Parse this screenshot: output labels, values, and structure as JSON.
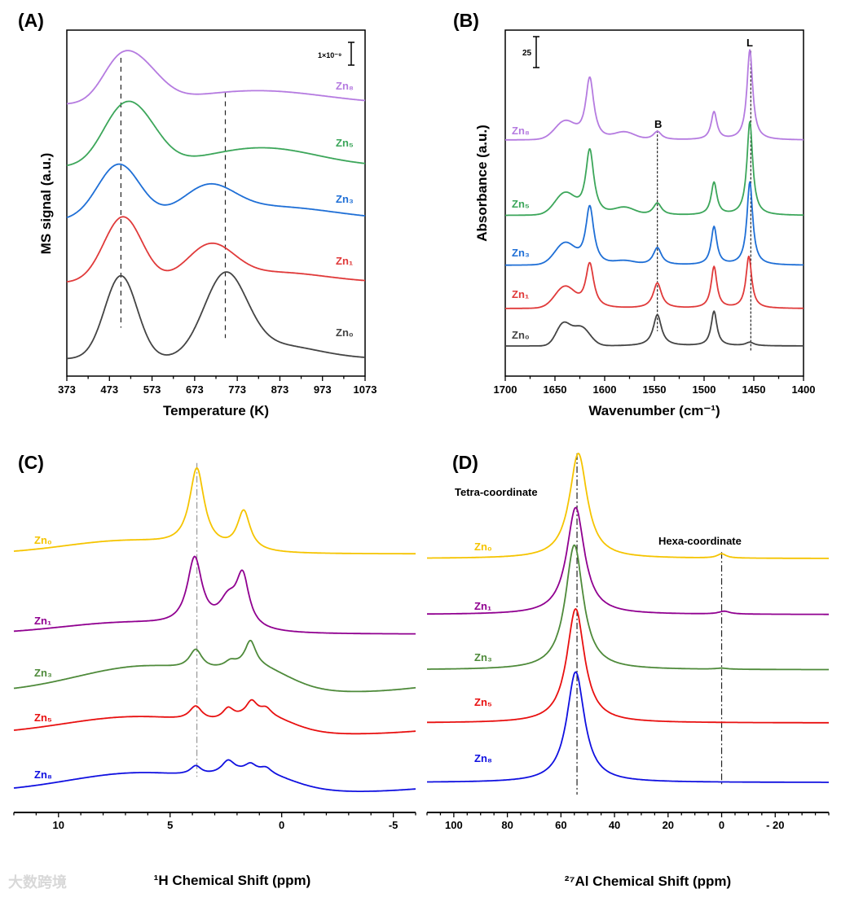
{
  "watermark": "大数跨境",
  "chart_data": [
    {
      "panel": "(A)",
      "type": "line",
      "xlabel": "Temperature (K)",
      "ylabel": "MS signal (a.u.)",
      "xlim": [
        373,
        1073
      ],
      "ylim": [
        0,
        100
      ],
      "xticks": [
        373,
        473,
        573,
        673,
        773,
        873,
        973,
        1073
      ],
      "xtick_labels": [
        "373",
        "473",
        "573",
        "673",
        "773",
        "873",
        "973",
        "1073"
      ],
      "minor_step": 50,
      "scale_bar": {
        "label": "1×10⁻⁹"
      },
      "reference_lines": [
        {
          "x": 500,
          "y_range": [
            14,
            92
          ]
        },
        {
          "x": 745,
          "y_range": [
            11,
            82
          ]
        }
      ],
      "series": [
        {
          "name": "Zn₈",
          "color": "#b57be0",
          "offset": 78.5,
          "peaks": [
            [
              490,
              8,
              40,
              "g"
            ],
            [
              545,
              10,
              50,
              "g"
            ],
            [
              820,
              4,
              160,
              "g"
            ]
          ]
        },
        {
          "name": "Zn₅",
          "color": "#3ca65a",
          "offset": 60.5,
          "peaks": [
            [
              490,
              10,
              45,
              "g"
            ],
            [
              545,
              12,
              50,
              "g"
            ],
            [
              830,
              5.5,
              130,
              "g"
            ]
          ]
        },
        {
          "name": "Zn₃",
          "color": "#1f6fd6",
          "offset": 45,
          "peaks": [
            [
              495,
              16,
              50,
              "g"
            ],
            [
              705,
              8,
              60,
              "g"
            ],
            [
              850,
              4,
              150,
              "g"
            ]
          ]
        },
        {
          "name": "Zn₁",
          "color": "#e03a3a",
          "offset": 27,
          "peaks": [
            [
              505,
              19,
              45,
              "g"
            ],
            [
              710,
              10,
              55,
              "g"
            ],
            [
              860,
              3,
              120,
              "g"
            ]
          ]
        },
        {
          "name": "Zn₀",
          "color": "#444444",
          "offset": 5,
          "peaks": [
            [
              500,
              24,
              38,
              "g"
            ],
            [
              745,
              23,
              50,
              "g"
            ],
            [
              860,
              4,
              100,
              "g"
            ]
          ]
        }
      ]
    },
    {
      "panel": "(B)",
      "type": "line",
      "xlabel": "Wavenumber (cm⁻¹)",
      "ylabel": "Absorbance (a.u.)",
      "xlim": [
        1700,
        1400
      ],
      "ylim": [
        0,
        100
      ],
      "xticks": [
        1700,
        1650,
        1600,
        1550,
        1500,
        1450,
        1400
      ],
      "xtick_labels": [
        "1700",
        "1650",
        "1600",
        "1550",
        "1500",
        "1450",
        "1400"
      ],
      "minor_step": 25,
      "scale_bar": {
        "label": "25"
      },
      "annotations": [
        "B",
        "L"
      ],
      "reference_lines": [
        {
          "x": 1547,
          "y_range": [
            13,
            71
          ]
        },
        {
          "x": 1453,
          "y_range": [
            7,
            94
          ]
        }
      ],
      "series": [
        {
          "name": "Zn₈",
          "color": "#b57be0",
          "offset": 68.2,
          "peaks": [
            [
              1640,
              5,
              10,
              "g"
            ],
            [
              1615,
              18,
              5,
              "l"
            ],
            [
              1580,
              2,
              10,
              "g"
            ],
            [
              1547,
              2.4,
              5,
              "l"
            ],
            [
              1490,
              8,
              3.5,
              "l"
            ],
            [
              1454,
              26,
              3.5,
              "l"
            ]
          ]
        },
        {
          "name": "Zn₅",
          "color": "#3ca65a",
          "offset": 46.4,
          "peaks": [
            [
              1640,
              6,
              10,
              "g"
            ],
            [
              1615,
              19,
              5,
              "l"
            ],
            [
              1580,
              2,
              10,
              "g"
            ],
            [
              1547,
              3.5,
              5,
              "l"
            ],
            [
              1490,
              9.4,
              3.5,
              "l"
            ],
            [
              1454,
              27,
              3.5,
              "l"
            ]
          ]
        },
        {
          "name": "Zn₃",
          "color": "#1f6fd6",
          "offset": 32,
          "peaks": [
            [
              1640,
              6,
              10,
              "g"
            ],
            [
              1615,
              17,
              5,
              "l"
            ],
            [
              1580,
              1,
              10,
              "g"
            ],
            [
              1547,
              5,
              5,
              "l"
            ],
            [
              1490,
              11,
              3.5,
              "l"
            ],
            [
              1454,
              24,
              3.5,
              "l"
            ]
          ]
        },
        {
          "name": "Zn₁",
          "color": "#e03a3a",
          "offset": 19.5,
          "peaks": [
            [
              1640,
              6,
              10,
              "g"
            ],
            [
              1615,
              13,
              5,
              "l"
            ],
            [
              1547,
              7.3,
              5,
              "l"
            ],
            [
              1490,
              12,
              3.5,
              "l"
            ],
            [
              1455,
              15,
              3.5,
              "l"
            ]
          ]
        },
        {
          "name": "Zn₀",
          "color": "#444444",
          "offset": 8.7,
          "peaks": [
            [
              1642,
              6,
              7,
              "g"
            ],
            [
              1624,
              5.5,
              9,
              "g"
            ],
            [
              1547,
              9,
              5,
              "l"
            ],
            [
              1490,
              10,
              3.5,
              "l"
            ],
            [
              1454,
              1,
              5,
              "l"
            ]
          ]
        }
      ]
    },
    {
      "panel": "(C)",
      "type": "line",
      "xlabel": "¹H Chemical Shift (ppm)",
      "xlim": [
        12,
        -6
      ],
      "ylim": [
        0,
        100
      ],
      "xticks": [
        10,
        5,
        0,
        -5
      ],
      "xtick_labels": [
        "10",
        "5",
        "0",
        "-5"
      ],
      "minor_step": 1,
      "reference_lines": [
        {
          "x": 3.8,
          "y_range": [
            10,
            98
          ]
        }
      ],
      "series": [
        {
          "name": "Zn₀",
          "color": "#f5c400",
          "offset": 72.5,
          "peaks": [
            [
              7,
              3.5,
              2.8,
              "g"
            ],
            [
              3.8,
              22,
              0.4,
              "l"
            ],
            [
              1.7,
              11,
              0.35,
              "l"
            ]
          ]
        },
        {
          "name": "Zn₁",
          "color": "#900090",
          "offset": 50,
          "peaks": [
            [
              7,
              3,
              3,
              "g"
            ],
            [
              3.9,
              19,
              0.4,
              "l"
            ],
            [
              2.4,
              7,
              0.5,
              "l"
            ],
            [
              1.75,
              14,
              0.35,
              "l"
            ]
          ]
        },
        {
          "name": "Zn₃",
          "color": "#4e8a3a",
          "offset": 33.5,
          "peaks": [
            [
              6,
              7.5,
              3.2,
              "g"
            ],
            [
              1,
              5,
              1.4,
              "g"
            ],
            [
              3.85,
              5.5,
              0.35,
              "l"
            ],
            [
              2.3,
              1.5,
              0.3,
              "l"
            ],
            [
              1.4,
              7,
              0.3,
              "l"
            ],
            [
              -9,
              3,
              2.5,
              "g"
            ]
          ]
        },
        {
          "name": "Zn₅",
          "color": "#e81010",
          "offset": 21.8,
          "peaks": [
            [
              6.5,
              5,
              3.3,
              "g"
            ],
            [
              0.8,
              4,
              1.3,
              "g"
            ],
            [
              3.85,
              4,
              0.35,
              "l"
            ],
            [
              2.4,
              3,
              0.3,
              "l"
            ],
            [
              1.35,
              4,
              0.3,
              "l"
            ],
            [
              0.7,
              2,
              0.3,
              "l"
            ],
            [
              -9,
              2,
              2.5,
              "g"
            ]
          ]
        },
        {
          "name": "Zn₈",
          "color": "#1010e0",
          "offset": 5.6,
          "peaks": [
            [
              6.3,
              5.5,
              3.3,
              "g"
            ],
            [
              1,
              4,
              1.5,
              "g"
            ],
            [
              3.85,
              2.5,
              0.3,
              "l"
            ],
            [
              2.4,
              3.5,
              0.35,
              "l"
            ],
            [
              1.4,
              2,
              0.3,
              "l"
            ],
            [
              0.7,
              1.5,
              0.3,
              "l"
            ],
            [
              -9,
              2,
              2.5,
              "g"
            ]
          ]
        }
      ]
    },
    {
      "panel": "(D)",
      "type": "line",
      "xlabel": "²⁷Al Chemical Shift (ppm)",
      "xlim": [
        110,
        -40
      ],
      "ylim": [
        0,
        100
      ],
      "xticks": [
        100,
        80,
        60,
        40,
        20,
        0,
        -20
      ],
      "xtick_labels": [
        "100",
        "80",
        "60",
        "40",
        "20",
        "0",
        "- 20"
      ],
      "minor_step": 5,
      "annotations": [
        "Tetra-coordinate",
        "Hexa-coordinate"
      ],
      "reference_lines": [
        {
          "x": 54,
          "y_range": [
            5,
            100.7
          ]
        },
        {
          "x": 0,
          "y_range": [
            7.5,
            73
          ]
        }
      ],
      "series": [
        {
          "name": "Zn₀",
          "color": "#f5c400",
          "offset": 71.2,
          "peaks": [
            [
              53.5,
              29.5,
              4,
              "l"
            ],
            [
              0,
              1.2,
              2,
              "l"
            ]
          ]
        },
        {
          "name": "Zn₁",
          "color": "#900090",
          "offset": 55.5,
          "peaks": [
            [
              54.5,
              30,
              4,
              "l"
            ],
            [
              -1,
              0.8,
              2.5,
              "l"
            ]
          ]
        },
        {
          "name": "Zn₃",
          "color": "#4e8a3a",
          "offset": 40,
          "peaks": [
            [
              55,
              35,
              4,
              "l"
            ],
            [
              0,
              0.3,
              2.5,
              "l"
            ]
          ]
        },
        {
          "name": "Zn₅",
          "color": "#e81010",
          "offset": 25.1,
          "peaks": [
            [
              54.5,
              32,
              4,
              "l"
            ]
          ]
        },
        {
          "name": "Zn₈",
          "color": "#1010e0",
          "offset": 8.4,
          "peaks": [
            [
              54.5,
              31,
              4,
              "l"
            ]
          ]
        }
      ]
    }
  ]
}
